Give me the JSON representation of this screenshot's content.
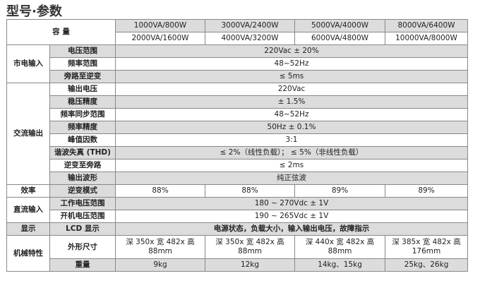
{
  "title": "型号·参数",
  "capacity_label": "容 量",
  "models_row1": [
    "1000VA/800W",
    "3000VA/2400W",
    "5000VA/4000W",
    "8000VA/6400W"
  ],
  "models_row2": [
    "2000VA/1600W",
    "4000VA/3200W",
    "6000VA/4800W",
    "10000VA/8000W"
  ],
  "mains": {
    "group": "市电输入",
    "rows": [
      [
        "电压范围",
        "220Vac ± 20%"
      ],
      [
        "频率范围",
        "48~52Hz"
      ],
      [
        "旁路至逆变",
        "≤ 5ms"
      ]
    ]
  },
  "ac": {
    "group": "交流输出",
    "rows": [
      [
        "输出电压",
        "220Vac"
      ],
      [
        "稳压精度",
        "± 1.5%"
      ],
      [
        "频率同步范围",
        "48~52Hz"
      ],
      [
        "频率精度",
        "50Hz ± 0.1%"
      ],
      [
        "峰值因数",
        "3:1"
      ],
      [
        "谐波失真 (THD)",
        "≤ 2%（线性负载）； ≤ 5%（非线性负载）"
      ],
      [
        "逆变至旁路",
        "≤ 2ms"
      ],
      [
        "输出波形",
        "纯正弦波"
      ]
    ]
  },
  "eff": {
    "group": "效率",
    "label": "逆变模式",
    "values": [
      "88%",
      "88%",
      "89%",
      "89%"
    ]
  },
  "dc": {
    "group": "直流输入",
    "rows": [
      [
        "工作电压范围",
        "180 ~ 270Vdc ± 1V"
      ],
      [
        "开机电压范围",
        "190 ~ 265Vdc ± 1V"
      ]
    ]
  },
  "display": {
    "group": "显示",
    "label": "LCD 显示",
    "value": "电源状态，负载大小，输入输出电压，故障指示"
  },
  "mech": {
    "group": "机械特性",
    "size_label": "外形尺寸",
    "sizes": [
      "深 350x 宽 482x 高 88mm",
      "深 350x 宽 482x 高 88mm",
      "深 440x 宽 482x 高 88mm",
      "深 385x 宽 482x 高 176mm"
    ],
    "weight_label": "重量",
    "weights": [
      "9kg",
      "12kg",
      "14kg、15kg",
      "25kg、26kg"
    ]
  }
}
